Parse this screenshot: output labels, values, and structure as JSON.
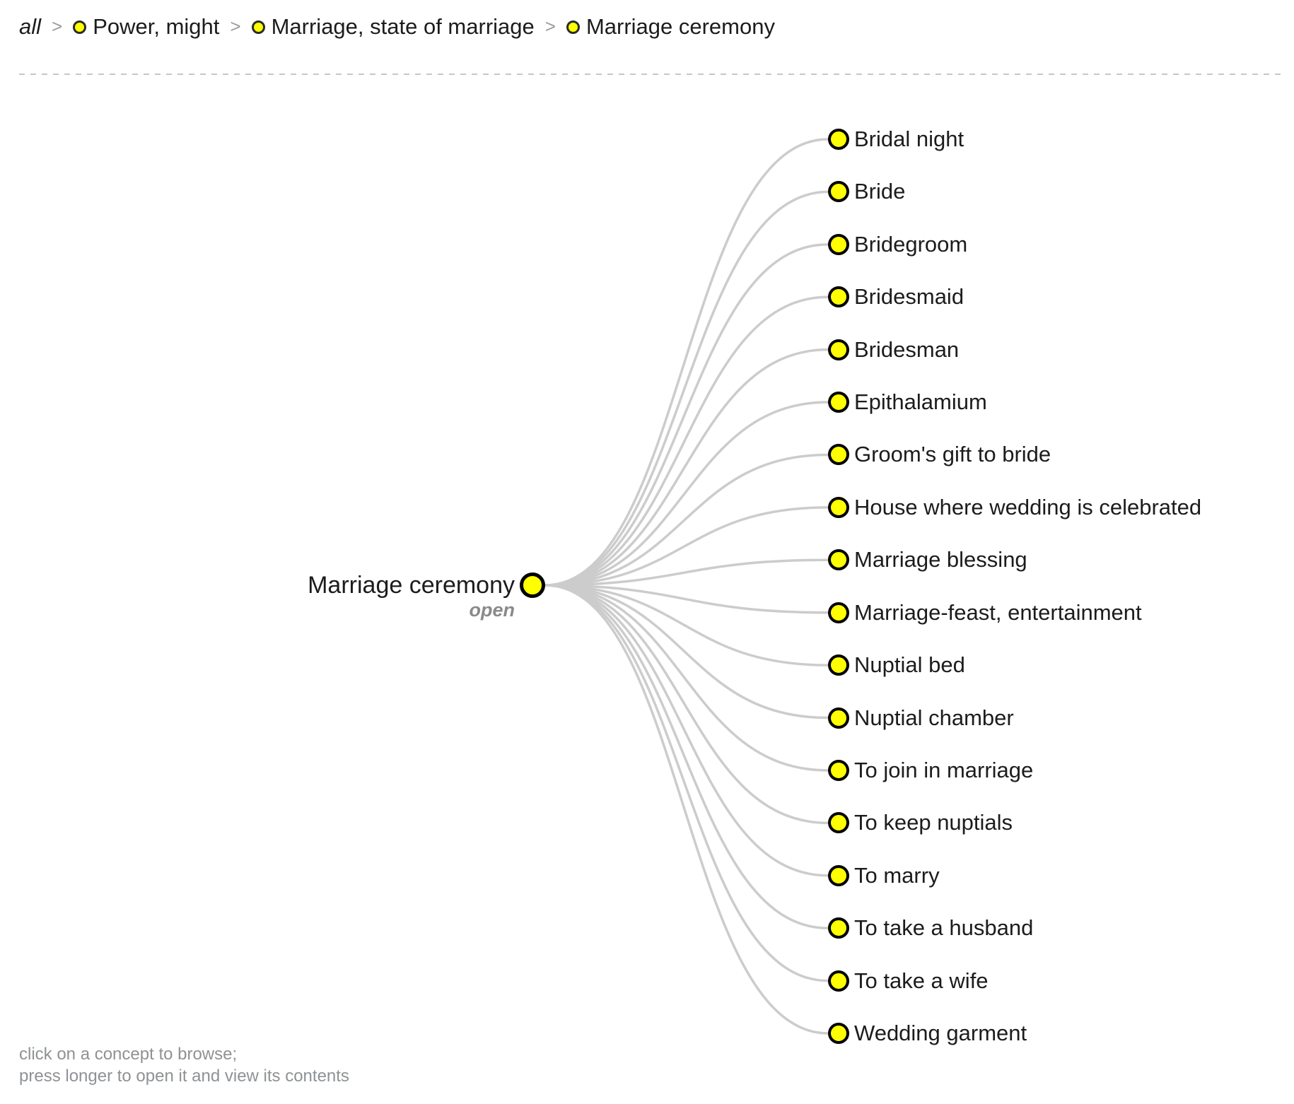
{
  "breadcrumb": {
    "root_label": "all",
    "separator": ">",
    "items": [
      {
        "label": "Power, might"
      },
      {
        "label": "Marriage, state of marriage"
      },
      {
        "label": "Marriage ceremony"
      }
    ]
  },
  "center_node": {
    "label": "Marriage ceremony",
    "state_label": "open"
  },
  "children": [
    "Bridal night",
    "Bride",
    "Bridegroom",
    "Bridesmaid",
    "Bridesman",
    "Epithalamium",
    "Groom's gift to bride",
    "House where wedding is celebrated",
    "Marriage blessing",
    "Marriage-feast, entertainment",
    "Nuptial bed",
    "Nuptial chamber",
    "To join in marriage",
    "To keep nuptials",
    "To marry",
    "To take a husband",
    "To take a wife",
    "Wedding garment"
  ],
  "hint": {
    "line1": "click on a concept to browse;",
    "line2": "press longer to open it and view its contents"
  },
  "colors": {
    "node_fill": "#ffff00",
    "node_stroke": "#000000",
    "link": "#cccccc",
    "text": "#1c1c1c",
    "muted_text": "#8f9295",
    "separator": "#9b9b9b",
    "divider": "#c7c7c7"
  }
}
